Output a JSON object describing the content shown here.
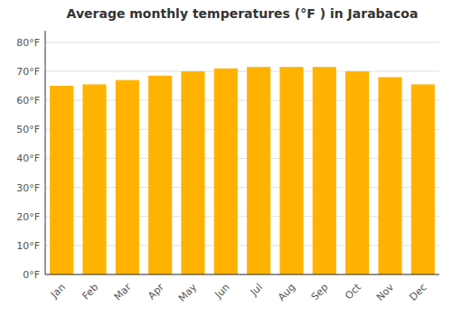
{
  "chart_data": {
    "type": "bar",
    "title": "Average monthly temperatures (°F ) in Jarabacoa",
    "categories": [
      "Jan",
      "Feb",
      "Mar",
      "Apr",
      "May",
      "Jun",
      "Jul",
      "Aug",
      "Sep",
      "Oct",
      "Nov",
      "Dec"
    ],
    "values": [
      65.0,
      65.5,
      67.0,
      68.5,
      70.0,
      71.0,
      71.5,
      71.5,
      71.5,
      70.0,
      68.0,
      65.5
    ],
    "color": "#FFB300",
    "ylim": [
      0,
      84
    ],
    "yticks": [
      {
        "value": 0,
        "label": "0°F"
      },
      {
        "value": 10,
        "label": "10°F"
      },
      {
        "value": 20,
        "label": "20°F"
      },
      {
        "value": 30,
        "label": "30°F"
      },
      {
        "value": 40,
        "label": "40°F"
      },
      {
        "value": 50,
        "label": "50°F"
      },
      {
        "value": 60,
        "label": "60°F"
      },
      {
        "value": 70,
        "label": "70°F"
      },
      {
        "value": 80,
        "label": "80°F"
      }
    ],
    "grid": true
  }
}
